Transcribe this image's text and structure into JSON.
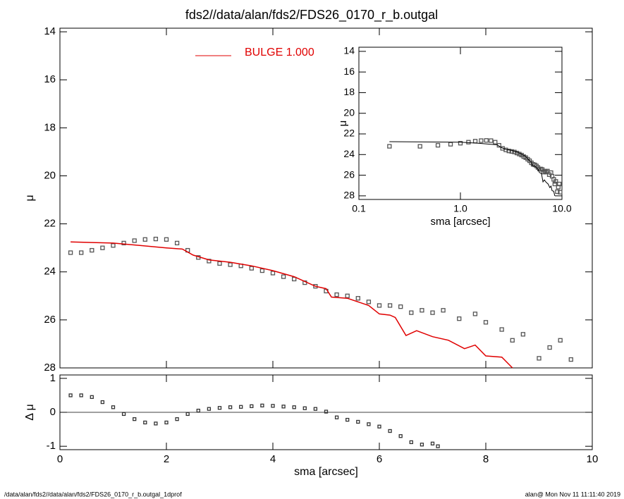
{
  "chart_data": [
    {
      "type": "scatter",
      "title": "fds2//data/alan/fds2/FDS26_0170_r_b.outgal",
      "ylabel": "μ",
      "ylim": [
        28,
        13.85
      ],
      "yticks": [
        14,
        16,
        18,
        20,
        22,
        24,
        26,
        28
      ],
      "series": [
        {
          "marker": "square",
          "color": "#555555",
          "x": [
            0.2,
            0.4,
            0.6,
            0.8,
            1.0,
            1.2,
            1.4,
            1.6,
            1.8,
            2.0,
            2.2,
            2.4,
            2.6,
            2.8,
            3.0,
            3.2,
            3.4,
            3.6,
            3.8,
            4.0,
            4.2,
            4.4,
            4.6,
            4.8,
            5.0,
            5.2,
            5.4,
            5.6,
            5.8,
            6.0,
            6.2,
            6.4,
            6.6,
            6.8,
            7.0,
            7.2,
            7.5,
            7.8,
            8.0,
            8.3,
            8.5,
            8.7,
            9.0,
            9.2,
            9.4,
            9.6
          ],
          "values": [
            23.2,
            23.2,
            23.1,
            23.0,
            22.9,
            22.8,
            22.7,
            22.65,
            22.63,
            22.65,
            22.8,
            23.1,
            23.4,
            23.55,
            23.65,
            23.7,
            23.75,
            23.85,
            23.95,
            24.05,
            24.2,
            24.3,
            24.45,
            24.6,
            24.8,
            24.95,
            25.0,
            25.1,
            25.25,
            25.4,
            25.4,
            25.45,
            25.7,
            25.6,
            25.7,
            25.6,
            25.95,
            25.75,
            26.1,
            26.4,
            26.85,
            26.6,
            27.6,
            27.15,
            26.85,
            27.65
          ]
        },
        {
          "name": "BULGE  1.000",
          "marker": "line",
          "color": "#e00000",
          "x": [
            0.2,
            1.0,
            1.5,
            2.0,
            2.3,
            2.5,
            2.8,
            3.2,
            3.6,
            4.0,
            4.4,
            4.8,
            5.0,
            5.1,
            5.4,
            5.8,
            6.0,
            6.2,
            6.3,
            6.5,
            6.7,
            7.0,
            7.3,
            7.6,
            7.8,
            8.0,
            8.3,
            8.5
          ],
          "values": [
            22.75,
            22.8,
            22.9,
            23.0,
            23.05,
            23.3,
            23.5,
            23.6,
            23.75,
            23.95,
            24.2,
            24.6,
            24.7,
            25.05,
            25.1,
            25.4,
            25.75,
            25.8,
            25.9,
            26.65,
            26.45,
            26.7,
            26.85,
            27.2,
            27.05,
            27.5,
            27.55,
            28.0
          ]
        }
      ]
    },
    {
      "type": "scatter",
      "ylabel": "Δ μ",
      "xlabel": "sma [arcsec]",
      "xlim": [
        0,
        10
      ],
      "xticks": [
        0,
        2,
        4,
        6,
        8,
        10
      ],
      "ylim": [
        -1.1,
        1.1
      ],
      "yticks": [
        -1,
        0,
        1
      ],
      "series": [
        {
          "marker": "point",
          "color": "#333333",
          "x": [
            0.2,
            0.4,
            0.6,
            0.8,
            1.0,
            1.2,
            1.4,
            1.6,
            1.8,
            2.0,
            2.2,
            2.4,
            2.6,
            2.8,
            3.0,
            3.2,
            3.4,
            3.6,
            3.8,
            4.0,
            4.2,
            4.4,
            4.6,
            4.8,
            5.0,
            5.2,
            5.4,
            5.6,
            5.8,
            6.0,
            6.2,
            6.4,
            6.6,
            6.8,
            7.0,
            7.1
          ],
          "values": [
            0.5,
            0.5,
            0.45,
            0.3,
            0.15,
            -0.05,
            -0.2,
            -0.3,
            -0.33,
            -0.3,
            -0.2,
            -0.05,
            0.05,
            0.1,
            0.13,
            0.15,
            0.16,
            0.18,
            0.2,
            0.19,
            0.17,
            0.15,
            0.12,
            0.1,
            0.02,
            -0.15,
            -0.22,
            -0.28,
            -0.35,
            -0.42,
            -0.55,
            -0.7,
            -0.88,
            -0.95,
            -0.92,
            -1.0
          ]
        }
      ]
    },
    {
      "type": "scatter",
      "ylabel": "μ",
      "xlabel": "sma [arcsec]",
      "xlog": true,
      "xlim": [
        0.1,
        10
      ],
      "xticks": [
        {
          "value": 0.1,
          "label": "0.1"
        },
        {
          "value": 1,
          "label": "1.0"
        },
        {
          "value": 10,
          "label": "10.0"
        }
      ],
      "ylim": [
        28.35,
        13.6
      ],
      "yticks": [
        14,
        16,
        18,
        20,
        22,
        24,
        26,
        28
      ]
    }
  ],
  "footer": {
    "left": "/data/alan/fds2//data/alan/fds2/FDS26_0170_r_b.outgal_1dprof",
    "right": "alan@  Mon Nov 11 11:11:40 2019"
  }
}
